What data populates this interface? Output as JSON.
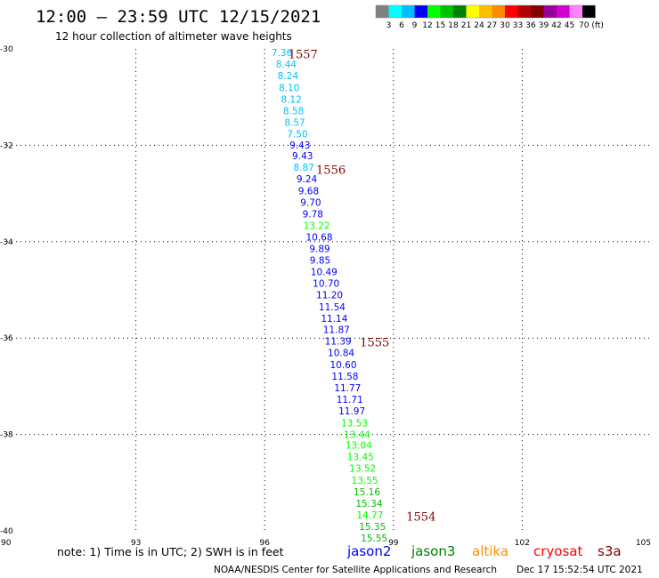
{
  "header": {
    "title": "12:00 – 23:59 UTC 12/15/2021",
    "subtitle": "12 hour collection of altimeter wave heights"
  },
  "scale": {
    "colors": [
      "#808080",
      "#00ffff",
      "#00bfff",
      "#0000ff",
      "#00ff00",
      "#00bf00",
      "#008000",
      "#ffff00",
      "#ffbf00",
      "#ff8c00",
      "#ff0000",
      "#b30000",
      "#800000",
      "#990099",
      "#d000d0",
      "#ff80ff",
      "#000000"
    ],
    "labels": [
      "3",
      "6",
      "9",
      "12",
      "15",
      "18",
      "21",
      "24",
      "27",
      "30",
      "33",
      "36",
      "39",
      "42",
      "45",
      "70 (ft)"
    ]
  },
  "axes": {
    "x_ticks": [
      "90",
      "93",
      "96",
      "99",
      "102",
      "105"
    ],
    "y_ticks": [
      "-30",
      "-32",
      "-34",
      "-36",
      "-38",
      "-40"
    ]
  },
  "passes": [
    "1557",
    "1556",
    "1555",
    "1554"
  ],
  "chart_data": {
    "type": "scatter",
    "lon_range": [
      90,
      105
    ],
    "lat_range": [
      -40,
      -30
    ],
    "grid": true,
    "points": [
      {
        "lon": 96.16,
        "lat": -30.07,
        "label": "7.36",
        "color": "#00bfff"
      },
      {
        "lon": 96.26,
        "lat": -30.31,
        "label": "8.44",
        "color": "#00bfff"
      },
      {
        "lon": 96.3,
        "lat": -30.55,
        "label": "8.24",
        "color": "#00bfff"
      },
      {
        "lon": 96.33,
        "lat": -30.8,
        "label": "8.10",
        "color": "#00bfff"
      },
      {
        "lon": 96.38,
        "lat": -31.04,
        "label": "8.12",
        "color": "#00bfff"
      },
      {
        "lon": 96.43,
        "lat": -31.28,
        "label": "8.58",
        "color": "#00bfff"
      },
      {
        "lon": 96.46,
        "lat": -31.52,
        "label": "8.57",
        "color": "#00bfff"
      },
      {
        "lon": 96.52,
        "lat": -31.76,
        "label": "7.50",
        "color": "#00bfff"
      },
      {
        "lon": 96.58,
        "lat": -31.99,
        "label": "9.43",
        "color": "#0000ff"
      },
      {
        "lon": 96.64,
        "lat": -32.21,
        "label": "9.43",
        "color": "#0000ff"
      },
      {
        "lon": 96.67,
        "lat": -32.45,
        "label": "8.87",
        "color": "#00bfff"
      },
      {
        "lon": 96.74,
        "lat": -32.69,
        "label": "9.24",
        "color": "#0000ff"
      },
      {
        "lon": 96.78,
        "lat": -32.94,
        "label": "9.68",
        "color": "#0000ff"
      },
      {
        "lon": 96.83,
        "lat": -33.18,
        "label": "9.70",
        "color": "#0000ff"
      },
      {
        "lon": 96.88,
        "lat": -33.42,
        "label": "9.78",
        "color": "#0000ff"
      },
      {
        "lon": 96.9,
        "lat": -33.66,
        "label": "13.22",
        "color": "#00ff00"
      },
      {
        "lon": 96.96,
        "lat": -33.9,
        "label": "10.68",
        "color": "#0000ff"
      },
      {
        "lon": 97.04,
        "lat": -34.14,
        "label": "9.89",
        "color": "#0000ff"
      },
      {
        "lon": 97.05,
        "lat": -34.38,
        "label": "9.85",
        "color": "#0000ff"
      },
      {
        "lon": 97.07,
        "lat": -34.62,
        "label": "10.49",
        "color": "#0000ff"
      },
      {
        "lon": 97.12,
        "lat": -34.86,
        "label": "10.70",
        "color": "#0000ff"
      },
      {
        "lon": 97.2,
        "lat": -35.1,
        "label": "11.20",
        "color": "#0000ff"
      },
      {
        "lon": 97.26,
        "lat": -35.35,
        "label": "11.54",
        "color": "#0000ff"
      },
      {
        "lon": 97.31,
        "lat": -35.59,
        "label": "11.14",
        "color": "#0000ff"
      },
      {
        "lon": 97.36,
        "lat": -35.82,
        "label": "11.87",
        "color": "#0000ff"
      },
      {
        "lon": 97.4,
        "lat": -36.06,
        "label": "11.39",
        "color": "#0000ff"
      },
      {
        "lon": 97.47,
        "lat": -36.3,
        "label": "10.84",
        "color": "#0000ff"
      },
      {
        "lon": 97.52,
        "lat": -36.55,
        "label": "10.60",
        "color": "#0000ff"
      },
      {
        "lon": 97.56,
        "lat": -36.79,
        "label": "11.58",
        "color": "#0000ff"
      },
      {
        "lon": 97.62,
        "lat": -37.03,
        "label": "11.77",
        "color": "#0000ff"
      },
      {
        "lon": 97.67,
        "lat": -37.27,
        "label": "11.71",
        "color": "#0000ff"
      },
      {
        "lon": 97.72,
        "lat": -37.51,
        "label": "11.97",
        "color": "#0000ff"
      },
      {
        "lon": 97.78,
        "lat": -37.76,
        "label": "13.53",
        "color": "#00ff00"
      },
      {
        "lon": 97.84,
        "lat": -38.0,
        "label": "13.44",
        "color": "#00ff00"
      },
      {
        "lon": 97.88,
        "lat": -38.22,
        "label": "13.04",
        "color": "#00ff00"
      },
      {
        "lon": 97.92,
        "lat": -38.46,
        "label": "13.45",
        "color": "#00ff00"
      },
      {
        "lon": 97.97,
        "lat": -38.7,
        "label": "13.52",
        "color": "#00ff00"
      },
      {
        "lon": 98.02,
        "lat": -38.95,
        "label": "13.55",
        "color": "#00ff00"
      },
      {
        "lon": 98.07,
        "lat": -39.19,
        "label": "15.16",
        "color": "#00bf00"
      },
      {
        "lon": 98.12,
        "lat": -39.43,
        "label": "15.34",
        "color": "#00bf00"
      },
      {
        "lon": 98.14,
        "lat": -39.67,
        "label": "14.77",
        "color": "#00ff00"
      },
      {
        "lon": 98.2,
        "lat": -39.91,
        "label": "15.35",
        "color": "#00bf00"
      },
      {
        "lon": 98.24,
        "lat": -40.15,
        "label": "15.55",
        "color": "#00bf00"
      }
    ],
    "pass_labels": [
      {
        "lon": 96.55,
        "lat": -30.1,
        "label": "1557"
      },
      {
        "lon": 97.2,
        "lat": -32.5,
        "label": "1556"
      },
      {
        "lon": 98.22,
        "lat": -36.08,
        "label": "1555"
      },
      {
        "lon": 99.3,
        "lat": -39.7,
        "label": "1554"
      }
    ]
  },
  "footer": {
    "note": "note: 1) Time is in UTC; 2) SWH is in feet",
    "satellites": [
      {
        "name": "jason2",
        "color": "#0000ff"
      },
      {
        "name": "jason3",
        "color": "#008000"
      },
      {
        "name": "altika",
        "color": "#ff8c00"
      },
      {
        "name": "cryosat",
        "color": "#ff0000"
      },
      {
        "name": "s3a",
        "color": "#800000"
      }
    ],
    "credit": "NOAA/NESDIS Center for Satellite Applications and Research",
    "timestamp": "Dec 17 15:52:54 UTC 2021"
  }
}
